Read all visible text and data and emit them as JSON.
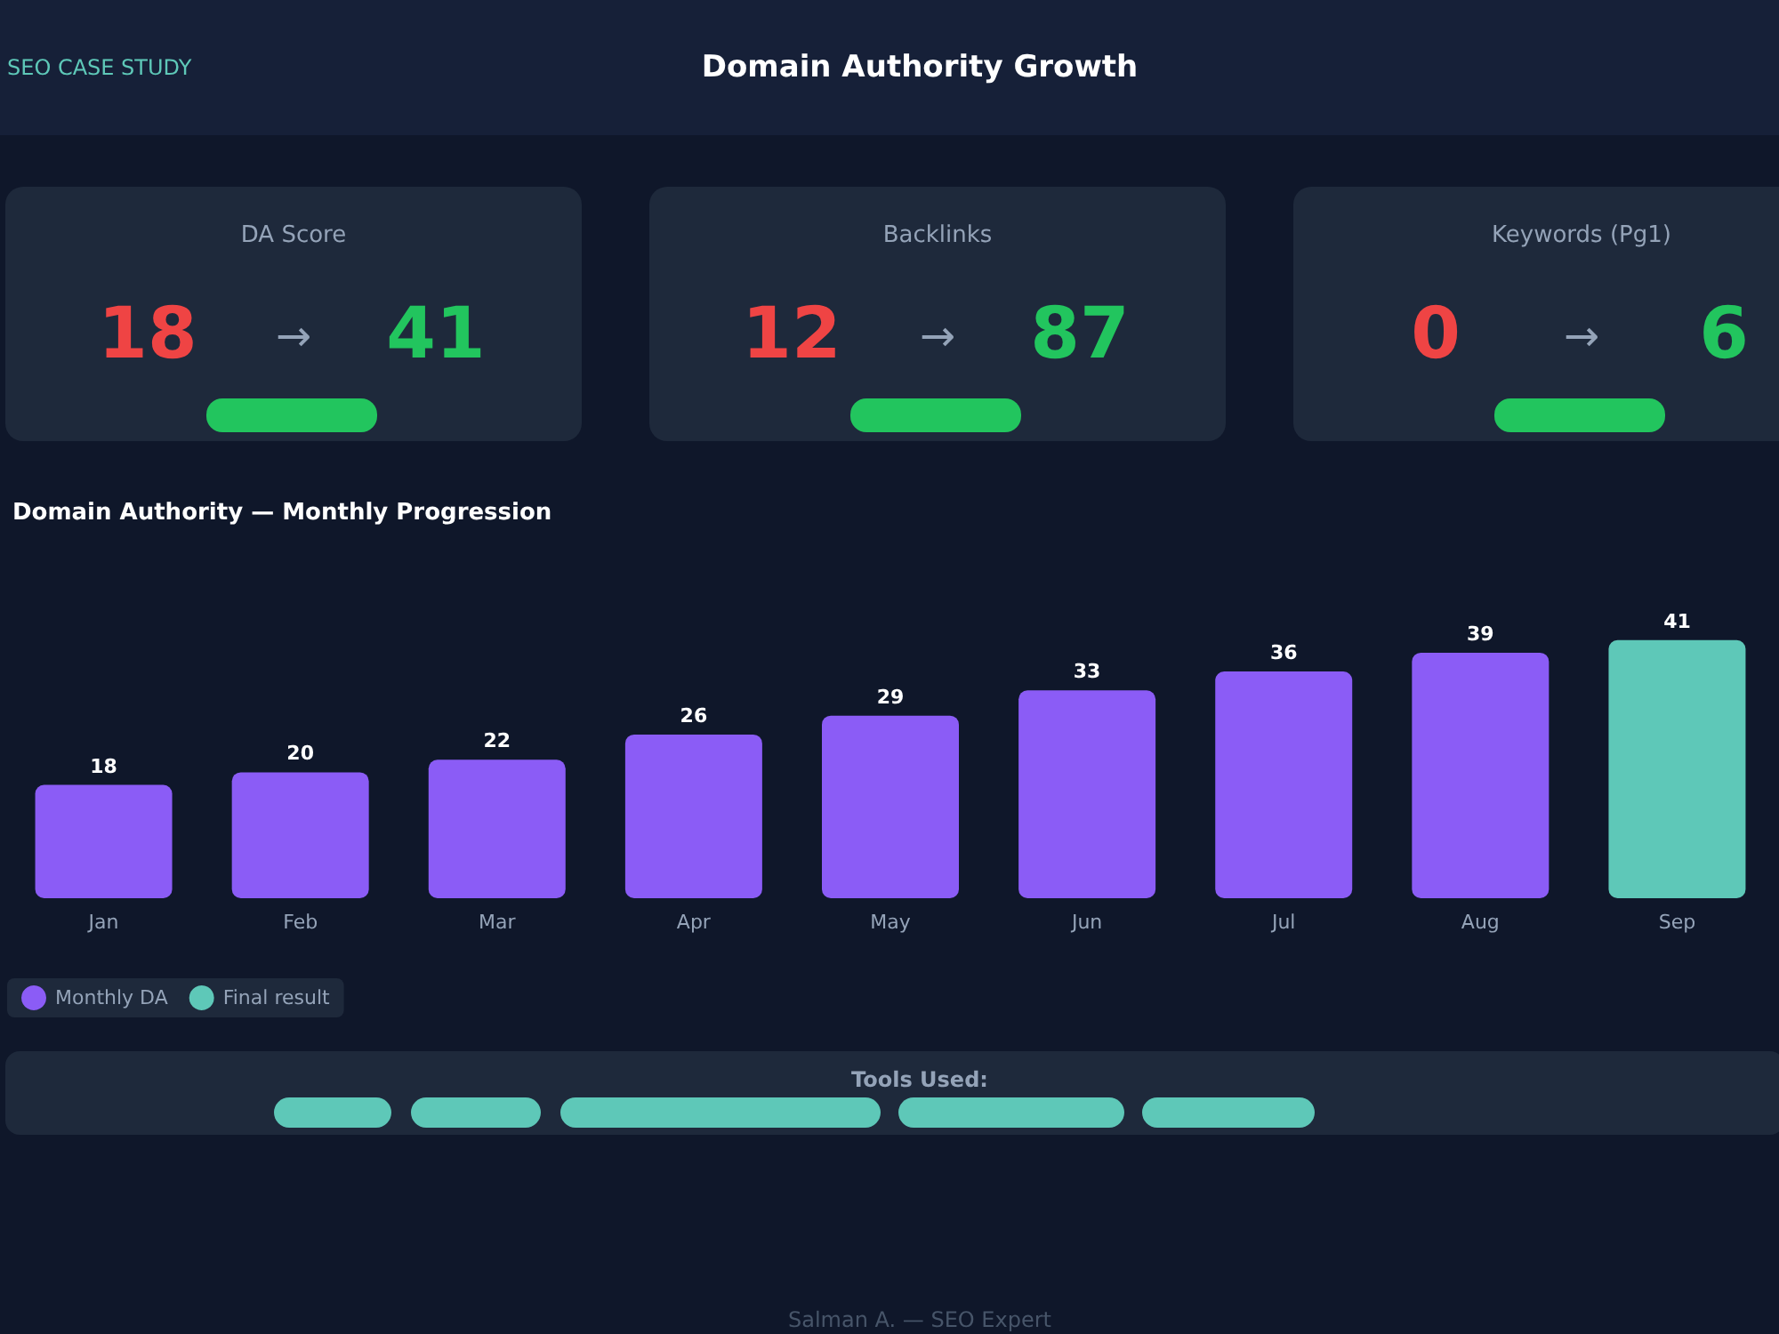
{
  "chart_data": [
    {
      "type": "other",
      "title": "Domain Authority Growth",
      "annotations": [
        "SEO CASE STUDY",
        "DA Score",
        "18",
        "→",
        "41",
        "Backlinks",
        "12",
        "→",
        "87",
        "Keywords (Pg1)",
        "0",
        "→",
        "6",
        "Tools Used:",
        "Salman A. — SEO Expert"
      ]
    },
    {
      "type": "bar",
      "title": "Domain Authority — Monthly Progression",
      "categories": [
        "Jan",
        "Feb",
        "Mar",
        "Apr",
        "May",
        "Jun",
        "Jul",
        "Aug",
        "Sep"
      ],
      "series": [
        {
          "name": "Monthly DA",
          "color": "#8b5cf6",
          "values": [
            18,
            20,
            22,
            26,
            29,
            33,
            36,
            39,
            null
          ]
        },
        {
          "name": "Final result",
          "color": "#5ec8b8",
          "values": [
            null,
            null,
            null,
            null,
            null,
            null,
            null,
            null,
            41
          ]
        }
      ],
      "data_labels": true,
      "grid": false,
      "legend": "bottom left"
    }
  ]
}
